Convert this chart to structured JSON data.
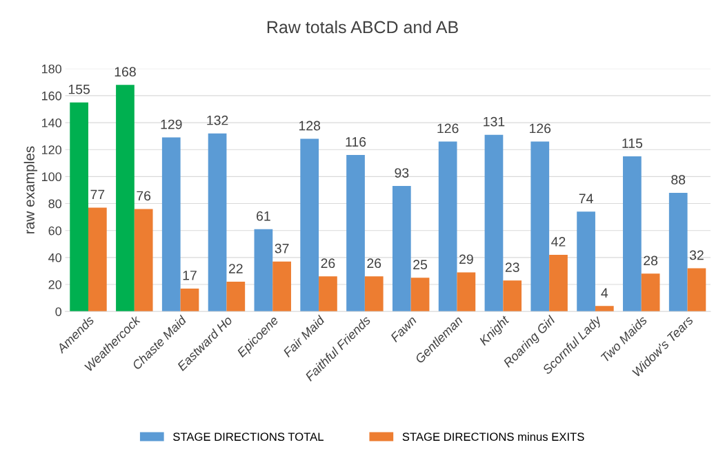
{
  "chart_data": {
    "type": "bar",
    "title": "Raw totals ABCD and AB",
    "ylabel": "raw examples",
    "categories": [
      "Amends",
      "Weathercock",
      "Chaste Maid",
      "Eastward Ho",
      "Epicoene",
      "Fair Maid",
      "Faithful Friends",
      "Fawn",
      "Gentleman",
      "Knight",
      "Roaring Girl",
      "Scornful Lady",
      "Two Maids",
      "Widow's Tears"
    ],
    "series": [
      {
        "name": "STAGE DIRECTIONS TOTAL",
        "color": "#5b9bd5",
        "colors": [
          "#00b050",
          "#00b050",
          "#5b9bd5",
          "#5b9bd5",
          "#5b9bd5",
          "#5b9bd5",
          "#5b9bd5",
          "#5b9bd5",
          "#5b9bd5",
          "#5b9bd5",
          "#5b9bd5",
          "#5b9bd5",
          "#5b9bd5",
          "#5b9bd5"
        ],
        "values": [
          155,
          168,
          129,
          132,
          61,
          128,
          116,
          93,
          126,
          131,
          126,
          74,
          115,
          88
        ]
      },
      {
        "name": "STAGE DIRECTIONS minus EXITS",
        "color": "#ed7d31",
        "values": [
          77,
          76,
          17,
          22,
          37,
          26,
          26,
          25,
          29,
          23,
          42,
          4,
          28,
          32
        ]
      }
    ],
    "ylim": [
      0,
      180
    ],
    "yticks": [
      0,
      20,
      40,
      60,
      80,
      100,
      120,
      140,
      160,
      180
    ],
    "grid": "y",
    "legend": "bottom",
    "data_labels": true
  }
}
